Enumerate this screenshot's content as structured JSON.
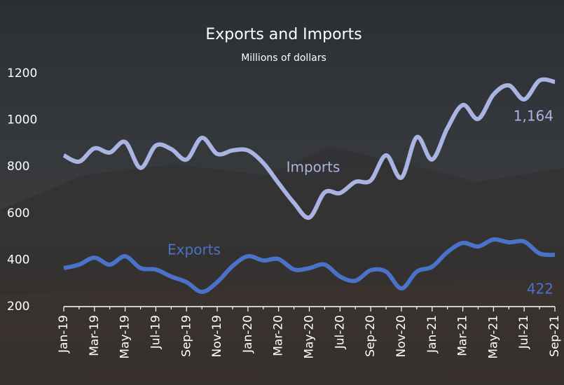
{
  "chart_data": {
    "type": "line",
    "title": "Exports and Imports",
    "subtitle": "Millions of dollars",
    "categories": [
      "Jan-19",
      null,
      "Mar-19",
      null,
      "May-19",
      null,
      "Jul-19",
      null,
      "Sep-19",
      null,
      "Nov-19",
      null,
      "Jan-20",
      null,
      "Mar-20",
      null,
      "May-20",
      null,
      "Jul-20",
      null,
      "Sep-20",
      null,
      "Nov-20",
      null,
      "Jan-21",
      null,
      "Mar-21",
      null,
      "May-21",
      null,
      "Jul-21",
      null,
      "Sep-21"
    ],
    "series": [
      {
        "name": "Imports",
        "color": "#aab4e2",
        "values": [
          849,
          822,
          879,
          861,
          906,
          795,
          891,
          876,
          831,
          924,
          855,
          870,
          870,
          816,
          729,
          645,
          582,
          690,
          687,
          735,
          741,
          849,
          753,
          927,
          831,
          966,
          1065,
          1005,
          1110,
          1149,
          1089,
          1170,
          1164
        ],
        "value_labels": [
          null,
          null,
          null,
          null,
          null,
          null,
          null,
          null,
          null,
          null,
          null,
          null,
          null,
          null,
          null,
          null,
          null,
          null,
          null,
          null,
          null,
          null,
          null,
          null,
          null,
          null,
          null,
          null,
          null,
          null,
          null,
          null,
          "1,164"
        ]
      },
      {
        "name": "Exports",
        "color": "#4a72c8",
        "values": [
          365,
          380,
          410,
          380,
          416,
          365,
          359,
          329,
          305,
          263,
          305,
          374,
          416,
          398,
          404,
          359,
          365,
          380,
          329,
          311,
          356,
          350,
          278,
          350,
          371,
          434,
          473,
          458,
          488,
          476,
          479,
          428,
          422
        ]
      }
    ],
    "ylim": [
      200,
      1200
    ],
    "yticks": [
      200,
      400,
      600,
      800,
      1000,
      1200
    ]
  }
}
